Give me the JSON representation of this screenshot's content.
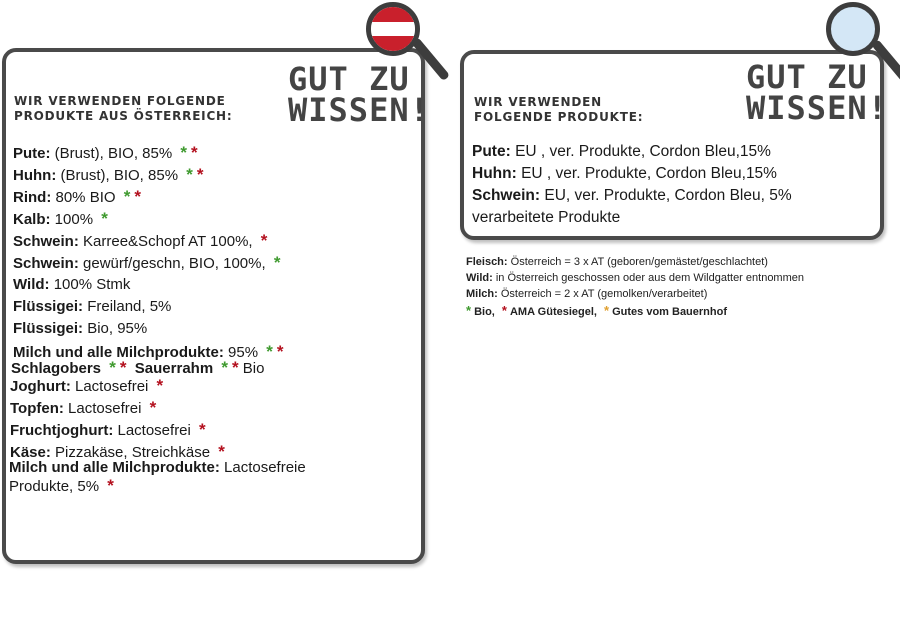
{
  "austria_card": {
    "heading_line1": "WIR VERWENDEN FOLGENDE",
    "heading_line2": "PRODUKTE AUS ÖSTERREICH:",
    "title_line1": "GUT ZU",
    "title_line2": "WISSEN!",
    "rows": [
      {
        "label": "Pute:",
        "text": "(Brust), BIO, 85%"
      },
      {
        "label": "Huhn:",
        "text": "(Brust),  BIO, 85%"
      },
      {
        "label": "Rind:",
        "text": "80% BIO"
      },
      {
        "label": "Kalb:",
        "text": "100%"
      },
      {
        "label": "Schwein:",
        "text": "Karree&Schopf AT 100%,"
      },
      {
        "label": "Schwein:",
        "text": "gewürf/geschn, BIO, 100%,"
      },
      {
        "label": "Wild:",
        "text": "100% Stmk"
      },
      {
        "label": "Flüssigei:",
        "text": "Freiland, 5%"
      },
      {
        "label": "Flüssigei:",
        "text": "Bio, 95%"
      },
      {
        "label": "Milch und alle Milchprodukte:",
        "text": "95%"
      },
      {
        "label": "Schlagobers",
        "label2": "Sauerrahm",
        "text": "Bio"
      },
      {
        "label": "Joghurt:",
        "text": "Lactosefrei"
      },
      {
        "label": "Topfen:",
        "text": "Lactosefrei"
      },
      {
        "label": "Fruchtjoghurt:",
        "text": "Lactosefrei"
      },
      {
        "label": "Käse:",
        "text": "Pizzakäse, Streichkäse"
      },
      {
        "label": "Milch und alle Milchprodukte:",
        "text": "Lactosefreie",
        "text2": "Produkte, 5%"
      }
    ]
  },
  "intl_card": {
    "heading_line1": "WIR VERWENDEN",
    "heading_line2": "FOLGENDE PRODUKTE:",
    "title_line1": "GUT ZU",
    "title_line2": "WISSEN!",
    "rows": [
      {
        "label": "Pute:",
        "text": "EU , ver. Produkte, Cordon Bleu,15%"
      },
      {
        "label": "Huhn:",
        "text": "EU , ver. Produkte, Cordon Bleu,15%"
      },
      {
        "label": "Schwein:",
        "text": "EU, ver. Produkte, Cordon Bleu, 5%"
      },
      {
        "label": "",
        "text": "verarbeitete Produkte"
      }
    ]
  },
  "legend": {
    "fleisch_label": "Fleisch:",
    "fleisch_text": "Österreich = 3 x AT (geboren/gemästet/geschlachtet)",
    "wild_label": "Wild:",
    "wild_text": "in Österreich geschossen oder aus dem Wildgatter entnommen",
    "milch_label": "Milch:",
    "milch_text": "Österreich = 2 x AT (gemolken/verarbeitet)",
    "bio": "Bio,",
    "ama": "AMA Gütesiegel,",
    "bauernhof": "Gutes vom Bauernhof"
  },
  "star_glyph": "*",
  "colors": {
    "bio": "#3f9a2f",
    "ama": "#b3101e",
    "bauernhof": "#e0a030",
    "frame": "#4a4a4a"
  }
}
